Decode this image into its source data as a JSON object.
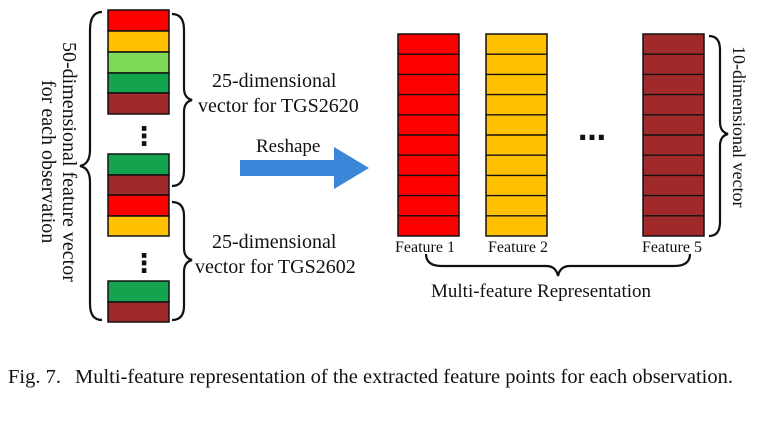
{
  "colors": {
    "red": "#ff0000",
    "orange": "#ffc000",
    "light_green": "#7ed957",
    "green": "#14a44d",
    "dark_red": "#a02a2a",
    "arrow": "#3a86d8"
  },
  "left_column": {
    "vertical_label_line1": "50-dimensional feature vector",
    "vertical_label_line2": "for each observation",
    "group1_label_line1": "25-dimensional",
    "group1_label_line2": "vector for TGS2620",
    "group2_label_line1": "25-dimensional",
    "group2_label_line2": "vector for TGS2602",
    "ellipsis": "⋮"
  },
  "arrow": {
    "label": "Reshape"
  },
  "features": [
    {
      "label": "Feature 1",
      "color": "#ff0000"
    },
    {
      "label": "Feature 2",
      "color": "#ffc000"
    },
    {
      "label": "Feature 5",
      "color": "#a02a2a"
    }
  ],
  "features_ellipsis": "…",
  "feature_vector_label": "10-dimensional vector",
  "bottom_label": "Multi-feature Representation",
  "caption": {
    "label": "Fig. 7.",
    "text": "Multi-feature representation of the extracted feature points for each observation."
  }
}
